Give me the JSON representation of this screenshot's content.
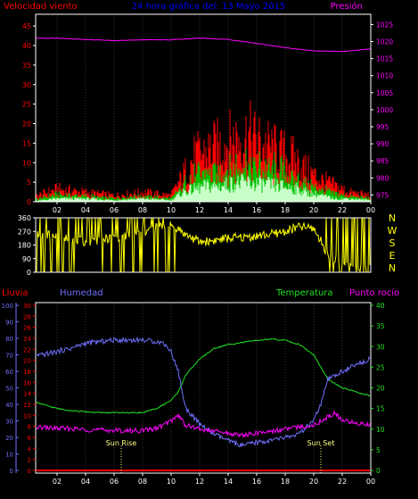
{
  "title": "24 hora gráfica del: 13 Mayo 2015",
  "colors": {
    "background": "#000000",
    "frame": "#ffffff",
    "wind": "#ff0000",
    "gust_fill": "#00c000",
    "avg_fill": "#c8ffc8",
    "pressure": "#ff00ff",
    "direction": "#ffff00",
    "humidity": "#7070ff",
    "temperature": "#20e020",
    "dewpoint": "#ff00ff",
    "rain": "#ff0000",
    "title": "#0000ff",
    "marker": "#ffff80"
  },
  "chart_data": [
    {
      "type": "area",
      "label_left": "Velocidad viento",
      "label_right": "Presión",
      "y_left": {
        "ticks": [
          "0",
          "5",
          "10",
          "15",
          "20",
          "25",
          "30",
          "35",
          "40",
          "45"
        ],
        "range": [
          0,
          48
        ]
      },
      "y_right": {
        "ticks": [
          "975",
          "980",
          "985",
          "990",
          "995",
          "1000",
          "1005",
          "1010",
          "1015",
          "1020",
          "1025"
        ],
        "range": [
          973,
          1028
        ]
      },
      "x_ticks": [
        "02",
        "04",
        "06",
        "08",
        "10",
        "12",
        "14",
        "16",
        "18",
        "20",
        "22",
        "00"
      ],
      "pressure": {
        "x": [
          0,
          2,
          4,
          6,
          8,
          10,
          12,
          14,
          16,
          18,
          20,
          22,
          24
        ],
        "y": [
          1021,
          1021,
          1020.6,
          1020.3,
          1020.5,
          1020.5,
          1021,
          1020.6,
          1019.5,
          1018.2,
          1017.3,
          1017.1,
          1017.8
        ]
      },
      "wind_gust": {
        "x": [
          0,
          2,
          4,
          6,
          8,
          10,
          10.8,
          11.6,
          12.5,
          13.5,
          14.5,
          15.5,
          16.5,
          17.5,
          18.5,
          19.5,
          20.5,
          21.5,
          22.5,
          24
        ],
        "y": [
          1,
          4,
          3,
          2,
          3,
          2,
          8,
          14,
          16,
          18,
          20,
          21,
          18,
          16,
          14,
          10,
          7,
          5,
          3,
          2
        ]
      },
      "wind_avg": {
        "x": [
          0,
          2,
          4,
          6,
          8,
          10,
          10.8,
          11.6,
          12.5,
          13.5,
          14.5,
          15.5,
          16.5,
          17.5,
          18.5,
          19.5,
          20.5,
          21.5,
          22.5,
          24
        ],
        "y": [
          0,
          1,
          1,
          0.5,
          1,
          0.5,
          3,
          4,
          5,
          5,
          6,
          6,
          5.5,
          5,
          4.5,
          3,
          2,
          1,
          1,
          0.5
        ]
      }
    },
    {
      "type": "line",
      "label_right": [
        "N",
        "W",
        "S",
        "E",
        "N"
      ],
      "y_left": {
        "ticks": [
          "0",
          "90",
          "180",
          "270",
          "360"
        ],
        "range": [
          0,
          360
        ]
      },
      "direction": {
        "x": [
          0,
          2,
          4,
          6,
          8,
          9,
          10.2,
          11,
          12,
          13,
          14,
          15,
          16,
          17,
          18,
          19,
          20,
          21,
          22,
          23,
          24
        ],
        "y": [
          270,
          240,
          200,
          230,
          260,
          300,
          310,
          250,
          200,
          210,
          225,
          230,
          240,
          250,
          270,
          300,
          290,
          120,
          60,
          40,
          30
        ]
      }
    },
    {
      "type": "line",
      "labels": {
        "rain": "Lluvia",
        "humidity": "Humedad",
        "temperature": "Temperatura",
        "dewpoint": "Punto rocío"
      },
      "y_humidity": {
        "ticks": [
          "0",
          "10",
          "20",
          "30",
          "40",
          "50",
          "60",
          "70",
          "80",
          "90",
          "100"
        ],
        "range": [
          0,
          100
        ]
      },
      "y_rain": {
        "ticks": [
          "0",
          "2",
          "4",
          "6",
          "8",
          "10",
          "12",
          "14",
          "16",
          "18",
          "20",
          "22",
          "24",
          "26",
          "28",
          "30"
        ],
        "range": [
          0,
          30
        ]
      },
      "y_temp": {
        "ticks": [
          "0",
          "5",
          "10",
          "15",
          "20",
          "25",
          "30",
          "35",
          "40"
        ],
        "range": [
          0,
          40
        ]
      },
      "x_ticks": [
        "02",
        "04",
        "06",
        "08",
        "10",
        "12",
        "14",
        "16",
        "18",
        "20",
        "22",
        "00"
      ],
      "annotations": {
        "sunrise": {
          "x": 6.5,
          "label": "Sun Rise"
        },
        "sunset": {
          "x": 20.5,
          "label": "Sun Set"
        }
      },
      "humidity": {
        "x": [
          0,
          1,
          2,
          3,
          4,
          5,
          6,
          7,
          8,
          9,
          9.5,
          10,
          10.5,
          11,
          12,
          13,
          14,
          15,
          16,
          17,
          18,
          19,
          20,
          20.5,
          21,
          22,
          23,
          24
        ],
        "y": [
          68,
          70,
          72,
          74,
          77,
          78,
          79,
          79,
          79,
          78,
          77,
          72,
          60,
          38,
          28,
          22,
          18,
          15,
          17,
          18,
          20,
          22,
          30,
          40,
          55,
          60,
          64,
          68
        ]
      },
      "temperature": {
        "x": [
          0,
          1,
          2,
          3,
          4,
          5,
          6,
          7,
          8,
          9,
          10,
          10.5,
          11,
          12,
          13,
          14,
          15,
          16,
          17,
          18,
          19,
          20,
          21,
          22,
          23,
          24
        ],
        "y": [
          17,
          16,
          15,
          14.5,
          14.2,
          14,
          14,
          14,
          14,
          15,
          17,
          19,
          23,
          27,
          29.5,
          30.5,
          31,
          31.5,
          31.8,
          31.5,
          30.5,
          28,
          22,
          20,
          19,
          18
        ]
      },
      "dewpoint": {
        "x": [
          0,
          1,
          2,
          3,
          4,
          5,
          6,
          7,
          8,
          9,
          10,
          10.5,
          11,
          12,
          13,
          14,
          15,
          16,
          17,
          18,
          19,
          20,
          21,
          21.5,
          22,
          23,
          24
        ],
        "y": [
          10.5,
          10.4,
          10.2,
          10.1,
          9.9,
          9.8,
          9.7,
          9.6,
          9.7,
          10.2,
          12,
          13.5,
          11,
          10,
          9.5,
          9,
          8.5,
          9,
          9.5,
          10,
          10.5,
          11,
          13,
          14,
          12,
          11.5,
          11
        ]
      },
      "rain": {
        "x": [
          0,
          24
        ],
        "y": [
          0,
          0
        ]
      }
    }
  ]
}
